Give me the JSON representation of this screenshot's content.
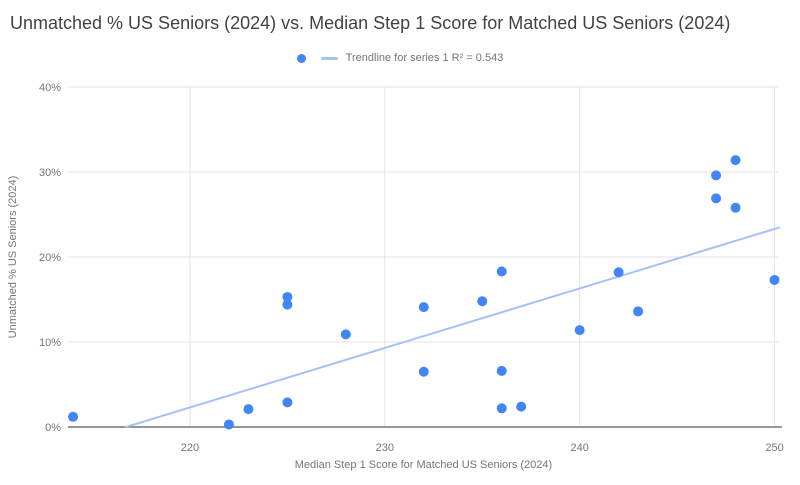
{
  "legend": {
    "series_marker": "blue-dot-icon",
    "trendline_swatch": "light-blue-line-icon",
    "trendline_label": "Trendline for series 1 R² = 0.543"
  },
  "chart_data": {
    "type": "scatter",
    "title": "Unmatched % US Seniors (2024) vs. Median Step 1 Score for Matched US Seniors (2024)",
    "xlabel": "Median Step 1 Score for Matched US Seniors (2024)",
    "ylabel": "Unmatched % US Seniors (2024)",
    "xlim": [
      213.74,
      250.23
    ],
    "ylim": [
      0,
      40
    ],
    "xticks": [
      220,
      230,
      240,
      250
    ],
    "yticks": [
      0,
      10,
      20,
      30,
      40
    ],
    "ytick_suffix": "%",
    "grid": true,
    "legend_position": "top-center",
    "points": [
      [
        214,
        1.2
      ],
      [
        222,
        0.3
      ],
      [
        223,
        2.1
      ],
      [
        225,
        2.9
      ],
      [
        225,
        14.4
      ],
      [
        225,
        15.3
      ],
      [
        228,
        10.9
      ],
      [
        232,
        6.5
      ],
      [
        232,
        14.1
      ],
      [
        235,
        14.8
      ],
      [
        236,
        2.2
      ],
      [
        236,
        6.6
      ],
      [
        236,
        18.3
      ],
      [
        237,
        2.4
      ],
      [
        240,
        11.4
      ],
      [
        242,
        18.2
      ],
      [
        243,
        13.6
      ],
      [
        247,
        26.9
      ],
      [
        247,
        29.6
      ],
      [
        248,
        25.8
      ],
      [
        248,
        31.4
      ],
      [
        250,
        17.3
      ]
    ],
    "trendline": {
      "slope": 0.7,
      "intercept": -151.7,
      "r2": 0.543
    },
    "colors": {
      "point": "#4285F4",
      "trendline": "#A4C2F4",
      "grid": "#E3E3E3",
      "axis_line": "#757575",
      "tick_text": "#757575",
      "title_text": "#424242",
      "secondary_text": "#757575"
    }
  }
}
